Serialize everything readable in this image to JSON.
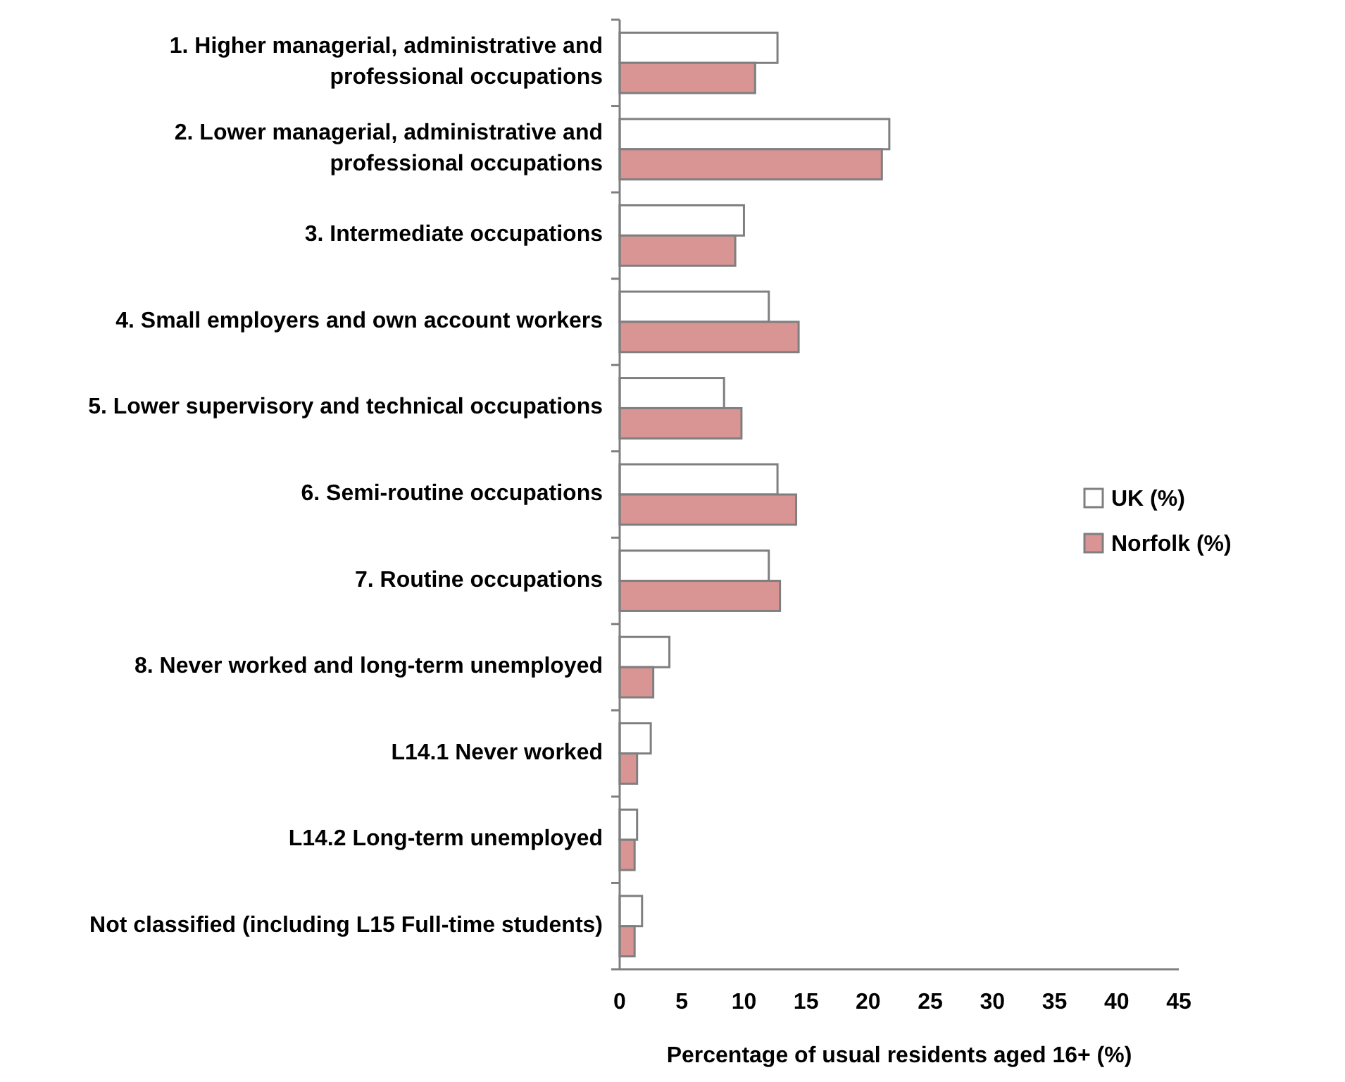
{
  "chart_data": {
    "type": "bar",
    "orientation": "horizontal",
    "xlabel": "Percentage of usual residents aged 16+ (%)",
    "categories": [
      "1. Higher managerial, administrative and professional occupations",
      "2. Lower managerial, administrative and professional occupations",
      "3. Intermediate occupations",
      "4. Small employers and own account workers",
      "5. Lower supervisory and technical occupations",
      "6. Semi-routine occupations",
      "7. Routine occupations",
      "8. Never worked and long-term unemployed",
      "L14.1 Never worked",
      "L14.2 Long-term unemployed",
      "Not classified (including L15 Full-time students)"
    ],
    "series": [
      {
        "name": "UK (%)",
        "color": "#ffffff",
        "values": [
          12.7,
          21.7,
          10.0,
          12.0,
          8.4,
          12.7,
          12.0,
          4.0,
          2.5,
          1.4,
          1.8
        ]
      },
      {
        "name": "Norfolk (%)",
        "color": "#d99594",
        "values": [
          10.9,
          21.1,
          9.3,
          14.4,
          9.8,
          14.2,
          12.9,
          2.7,
          1.4,
          1.2,
          1.2
        ]
      }
    ],
    "xlim": [
      0,
      45
    ],
    "xticks": [
      {
        "value": 0,
        "label": "0 "
      },
      {
        "value": 5,
        "label": "5 "
      },
      {
        "value": 10,
        "label": "10 "
      },
      {
        "value": 15,
        "label": "15 "
      },
      {
        "value": 20,
        "label": "20 "
      },
      {
        "value": 25,
        "label": "25 "
      },
      {
        "value": 30,
        "label": "30 "
      },
      {
        "value": 35,
        "label": "35 "
      },
      {
        "value": 40,
        "label": "40 "
      },
      {
        "value": 45,
        "label": "45 "
      }
    ],
    "grid": false,
    "legend": "right"
  }
}
